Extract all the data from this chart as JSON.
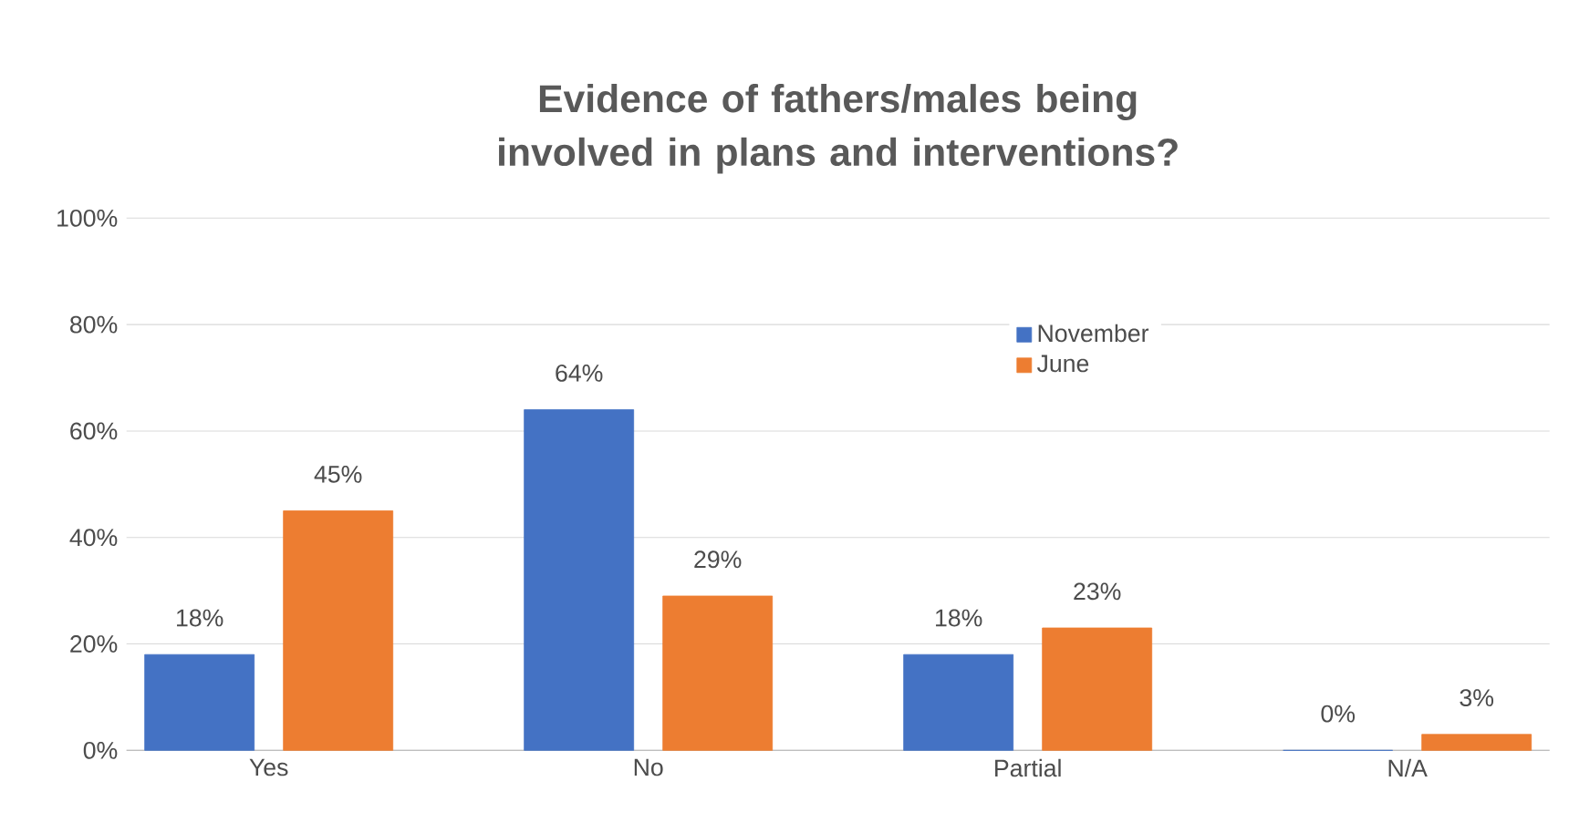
{
  "chart_data": {
    "type": "bar",
    "title": "Evidence of fathers/males being involved in plans and interventions?",
    "categories": [
      "Yes",
      "No",
      "Partial",
      "N/A"
    ],
    "series": [
      {
        "name": "November",
        "color": "#4472c4",
        "values": [
          18,
          64,
          18,
          0
        ],
        "value_labels": [
          "18%",
          "64%",
          "18%",
          "0%"
        ]
      },
      {
        "name": "June",
        "color": "#ed7d31",
        "values": [
          45,
          29,
          23,
          3
        ],
        "value_labels": [
          "45%",
          "29%",
          "23%",
          "3%"
        ]
      }
    ],
    "ylim": [
      0,
      100
    ],
    "yticks": [
      {
        "value": 0,
        "label": "0%"
      },
      {
        "value": 20,
        "label": "20%"
      },
      {
        "value": 40,
        "label": "40%"
      },
      {
        "value": 60,
        "label": "60%"
      },
      {
        "value": 80,
        "label": "80%"
      },
      {
        "value": 100,
        "label": "100%"
      }
    ],
    "grid": "y",
    "legend": "top right"
  }
}
